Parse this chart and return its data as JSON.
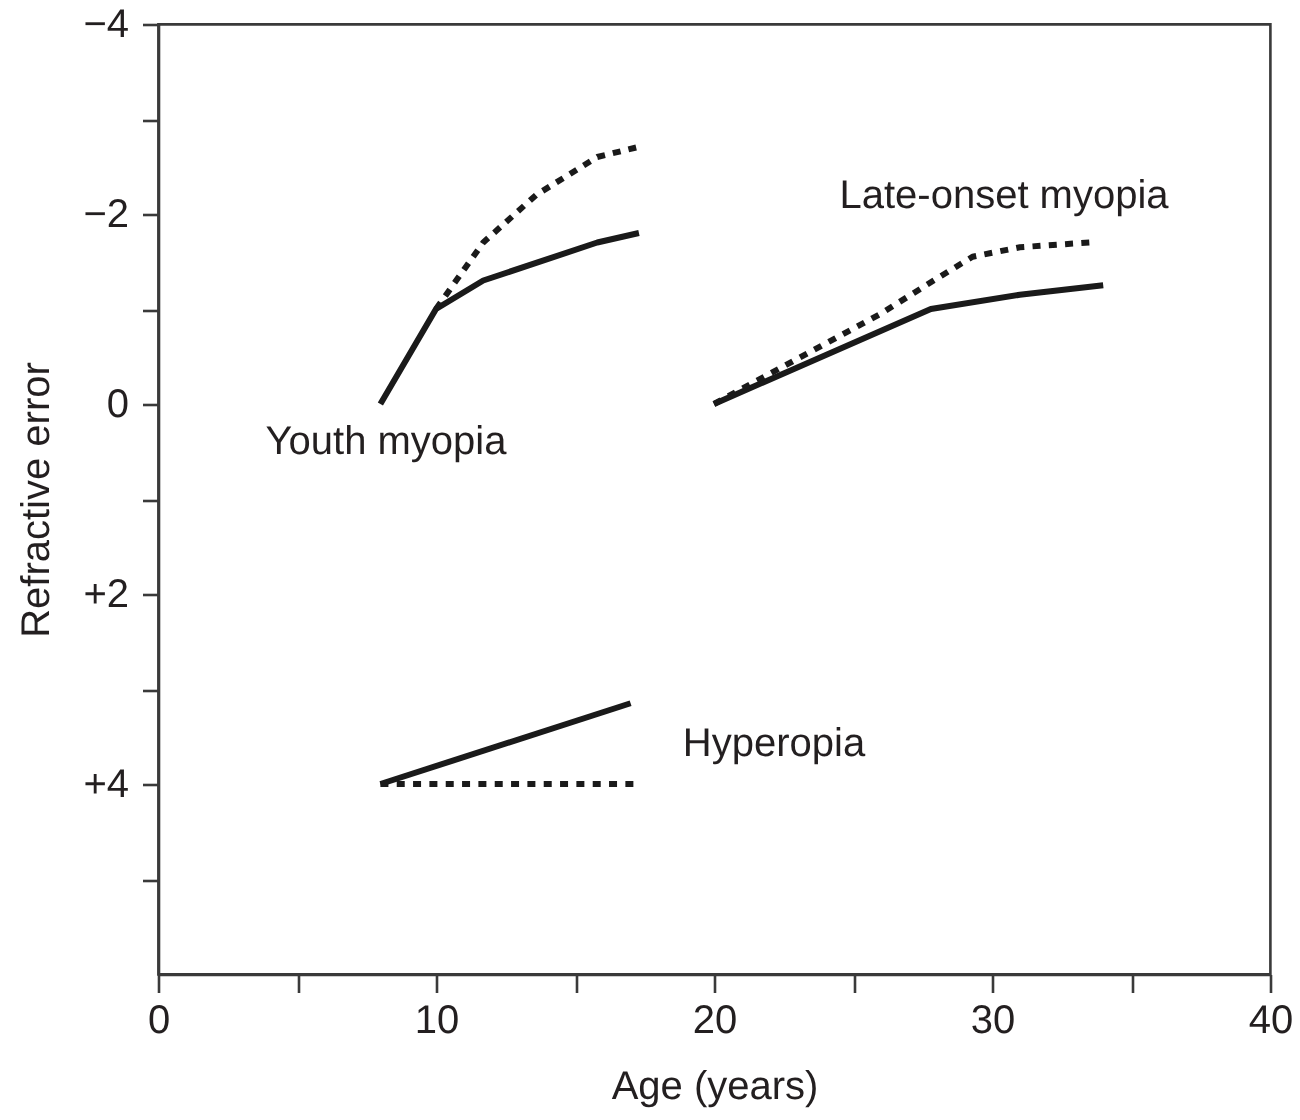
{
  "chart_data": {
    "type": "line",
    "xlabel": "Age (years)",
    "ylabel": "Refractive error",
    "xlim": [
      0,
      40
    ],
    "xticks": [
      0,
      {
        "value": 5,
        "label": null
      },
      10,
      {
        "value": 15,
        "label": null
      },
      20,
      {
        "value": 25,
        "label": null
      },
      30,
      {
        "value": 35,
        "label": null
      },
      40
    ],
    "ylim": [
      6,
      -4
    ],
    "yticks": [
      {
        "value": -4,
        "label": "−4"
      },
      {
        "value": -3,
        "label": null
      },
      {
        "value": -2,
        "label": "−2"
      },
      {
        "value": -1,
        "label": null
      },
      0,
      {
        "value": 1,
        "label": null
      },
      {
        "value": 2,
        "label": "+2"
      },
      {
        "value": 3,
        "label": null
      },
      {
        "value": 4,
        "label": "+4"
      },
      {
        "value": 5,
        "label": null
      }
    ],
    "series": [
      {
        "color": "#1a1a1a",
        "line_style": "solid",
        "x": [
          8,
          10,
          11.7,
          15.8,
          17.3
        ],
        "values": [
          0,
          -1,
          -1.3,
          -1.7,
          -1.8
        ]
      },
      {
        "color": "#1a1a1a",
        "line_style": "dotted",
        "x": [
          10,
          11.7,
          13.6,
          15.8,
          17.2
        ],
        "values": [
          -1,
          -1.7,
          -2.2,
          -2.6,
          -2.7
        ]
      },
      {
        "color": "#1a1a1a",
        "line_style": "solid",
        "x": [
          20,
          27.8,
          31,
          34
        ],
        "values": [
          0,
          -1,
          -1.15,
          -1.25
        ]
      },
      {
        "color": "#1a1a1a",
        "line_style": "dotted",
        "x": [
          20,
          26,
          27.9,
          29.3,
          31,
          33.5
        ],
        "values": [
          0,
          -0.95,
          -1.3,
          -1.55,
          -1.65,
          -1.7
        ]
      },
      {
        "color": "#1a1a1a",
        "line_style": "solid",
        "x": [
          8,
          17
        ],
        "values": [
          4,
          3.15
        ]
      },
      {
        "color": "#1a1a1a",
        "line_style": "dotted",
        "x": [
          8,
          17.1
        ],
        "values": [
          4,
          4
        ]
      }
    ],
    "annotations": [
      "Youth myopia",
      "Late-onset myopia",
      "Hyperopia"
    ]
  }
}
